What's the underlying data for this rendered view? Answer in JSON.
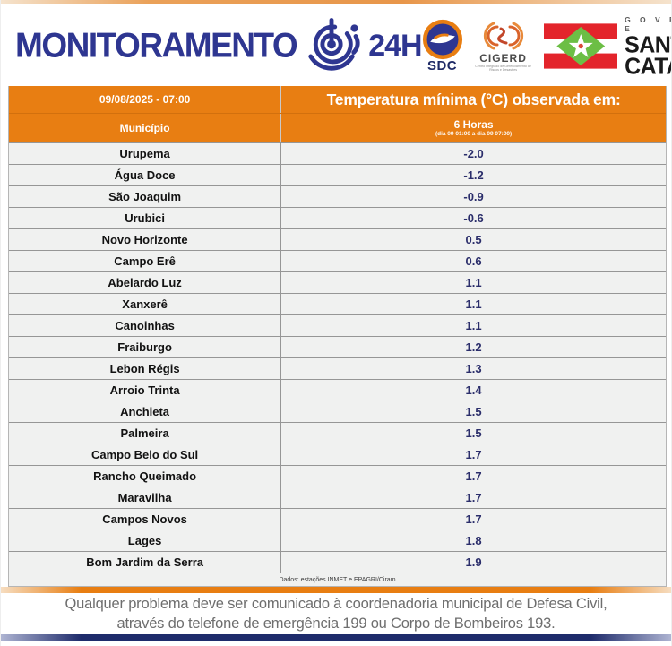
{
  "page": {
    "accent_orange": "#E87E12",
    "accent_blue": "#2E3691",
    "value_navy": "#2B2E6B",
    "row_bg": "#F0F1F0"
  },
  "header": {
    "title": "MONITORAMENTO",
    "badge": "24H",
    "logos": {
      "sdc": {
        "label": "SDC"
      },
      "cigerd": {
        "label": "CIGERD",
        "sublabel": "Centro Integrado de Gerenciamento de Riscos e Desastres"
      },
      "governo": {
        "line1": "G O V E R N O   D E",
        "line2": "SANTA",
        "line3": "CATARINA"
      }
    }
  },
  "table": {
    "datetime": "09/08/2025 - 07:00",
    "title": "Temperatura mínima (°C) observada em:",
    "col_municipio": "Município",
    "col_period": "6 Horas",
    "col_period_sub": "(dia 09 01:00 a dia 09 07:00)",
    "source": "Dados: estações INMET e EPAGRI/Ciram",
    "rows": [
      {
        "municipio": "Urupema",
        "valor": "-2.0"
      },
      {
        "municipio": "Água Doce",
        "valor": "-1.2"
      },
      {
        "municipio": "São Joaquim",
        "valor": "-0.9"
      },
      {
        "municipio": "Urubici",
        "valor": "-0.6"
      },
      {
        "municipio": "Novo Horizonte",
        "valor": "0.5"
      },
      {
        "municipio": "Campo Erê",
        "valor": "0.6"
      },
      {
        "municipio": "Abelardo Luz",
        "valor": "1.1"
      },
      {
        "municipio": "Xanxerê",
        "valor": "1.1"
      },
      {
        "municipio": "Canoinhas",
        "valor": "1.1"
      },
      {
        "municipio": "Fraiburgo",
        "valor": "1.2"
      },
      {
        "municipio": "Lebon Régis",
        "valor": "1.3"
      },
      {
        "municipio": "Arroio Trinta",
        "valor": "1.4"
      },
      {
        "municipio": "Anchieta",
        "valor": "1.5"
      },
      {
        "municipio": "Palmeira",
        "valor": "1.5"
      },
      {
        "municipio": "Campo Belo do Sul",
        "valor": "1.7"
      },
      {
        "municipio": "Rancho Queimado",
        "valor": "1.7"
      },
      {
        "municipio": "Maravilha",
        "valor": "1.7"
      },
      {
        "municipio": "Campos Novos",
        "valor": "1.7"
      },
      {
        "municipio": "Lages",
        "valor": "1.8"
      },
      {
        "municipio": "Bom Jardim da Serra",
        "valor": "1.9"
      }
    ]
  },
  "footer": {
    "line1": "Qualquer problema deve ser comunicado à coordenadoria municipal de Defesa Civil,",
    "line2": "através do telefone de emergência 199 ou Corpo de Bombeiros 193."
  },
  "chart_data": {
    "type": "table",
    "title": "Temperatura mínima (°C) observada em: 6 Horas (09/08/2025 - 07:00)",
    "columns": [
      "Município",
      "Temperatura mínima (°C) - 6 Horas"
    ],
    "categories": [
      "Urupema",
      "Água Doce",
      "São Joaquim",
      "Urubici",
      "Novo Horizonte",
      "Campo Erê",
      "Abelardo Luz",
      "Xanxerê",
      "Canoinhas",
      "Fraiburgo",
      "Lebon Régis",
      "Arroio Trinta",
      "Anchieta",
      "Palmeira",
      "Campo Belo do Sul",
      "Rancho Queimado",
      "Maravilha",
      "Campos Novos",
      "Lages",
      "Bom Jardim da Serra"
    ],
    "values": [
      -2.0,
      -1.2,
      -0.9,
      -0.6,
      0.5,
      0.6,
      1.1,
      1.1,
      1.1,
      1.2,
      1.3,
      1.4,
      1.5,
      1.5,
      1.7,
      1.7,
      1.7,
      1.7,
      1.8,
      1.9
    ],
    "unit": "°C",
    "source": "Dados: estações INMET e EPAGRI/Ciram"
  }
}
